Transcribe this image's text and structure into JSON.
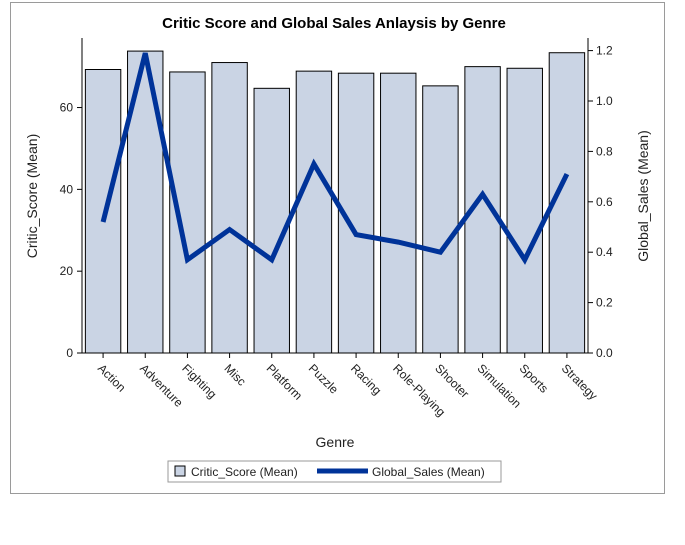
{
  "chart_data": {
    "type": "bar",
    "title": "Critic Score and Global Sales Anlaysis by Genre",
    "xlabel": "Genre",
    "ylabel": "Critic_Score (Mean)",
    "y2label": "Global_Sales (Mean)",
    "categories": [
      "Action",
      "Adventure",
      "Fighting",
      "Misc",
      "Platform",
      "Puzzle",
      "Racing",
      "Role-Playing",
      "Shooter",
      "Simulation",
      "Sports",
      "Strategy"
    ],
    "ylim": [
      0,
      77
    ],
    "y2lim": [
      0,
      1.25
    ],
    "yticks": [
      0,
      20,
      40,
      60
    ],
    "y2ticks": [
      "0.0",
      "0.2",
      "0.4",
      "0.6",
      "0.8",
      "1.0",
      "1.2"
    ],
    "series": [
      {
        "name": "Critic_Score (Mean)",
        "type": "bar",
        "axis": "left",
        "color": "#cad4e4",
        "values": [
          69.3,
          73.8,
          68.7,
          71.0,
          64.7,
          68.9,
          68.4,
          68.4,
          65.3,
          70.0,
          69.6,
          73.4
        ]
      },
      {
        "name": "Global_Sales (Mean)",
        "type": "line",
        "axis": "right",
        "color": "#003399",
        "values": [
          0.52,
          1.19,
          0.37,
          0.49,
          0.37,
          0.75,
          0.47,
          0.44,
          0.4,
          0.63,
          0.37,
          0.71
        ]
      }
    ],
    "grid": false,
    "legend": "bottom"
  }
}
